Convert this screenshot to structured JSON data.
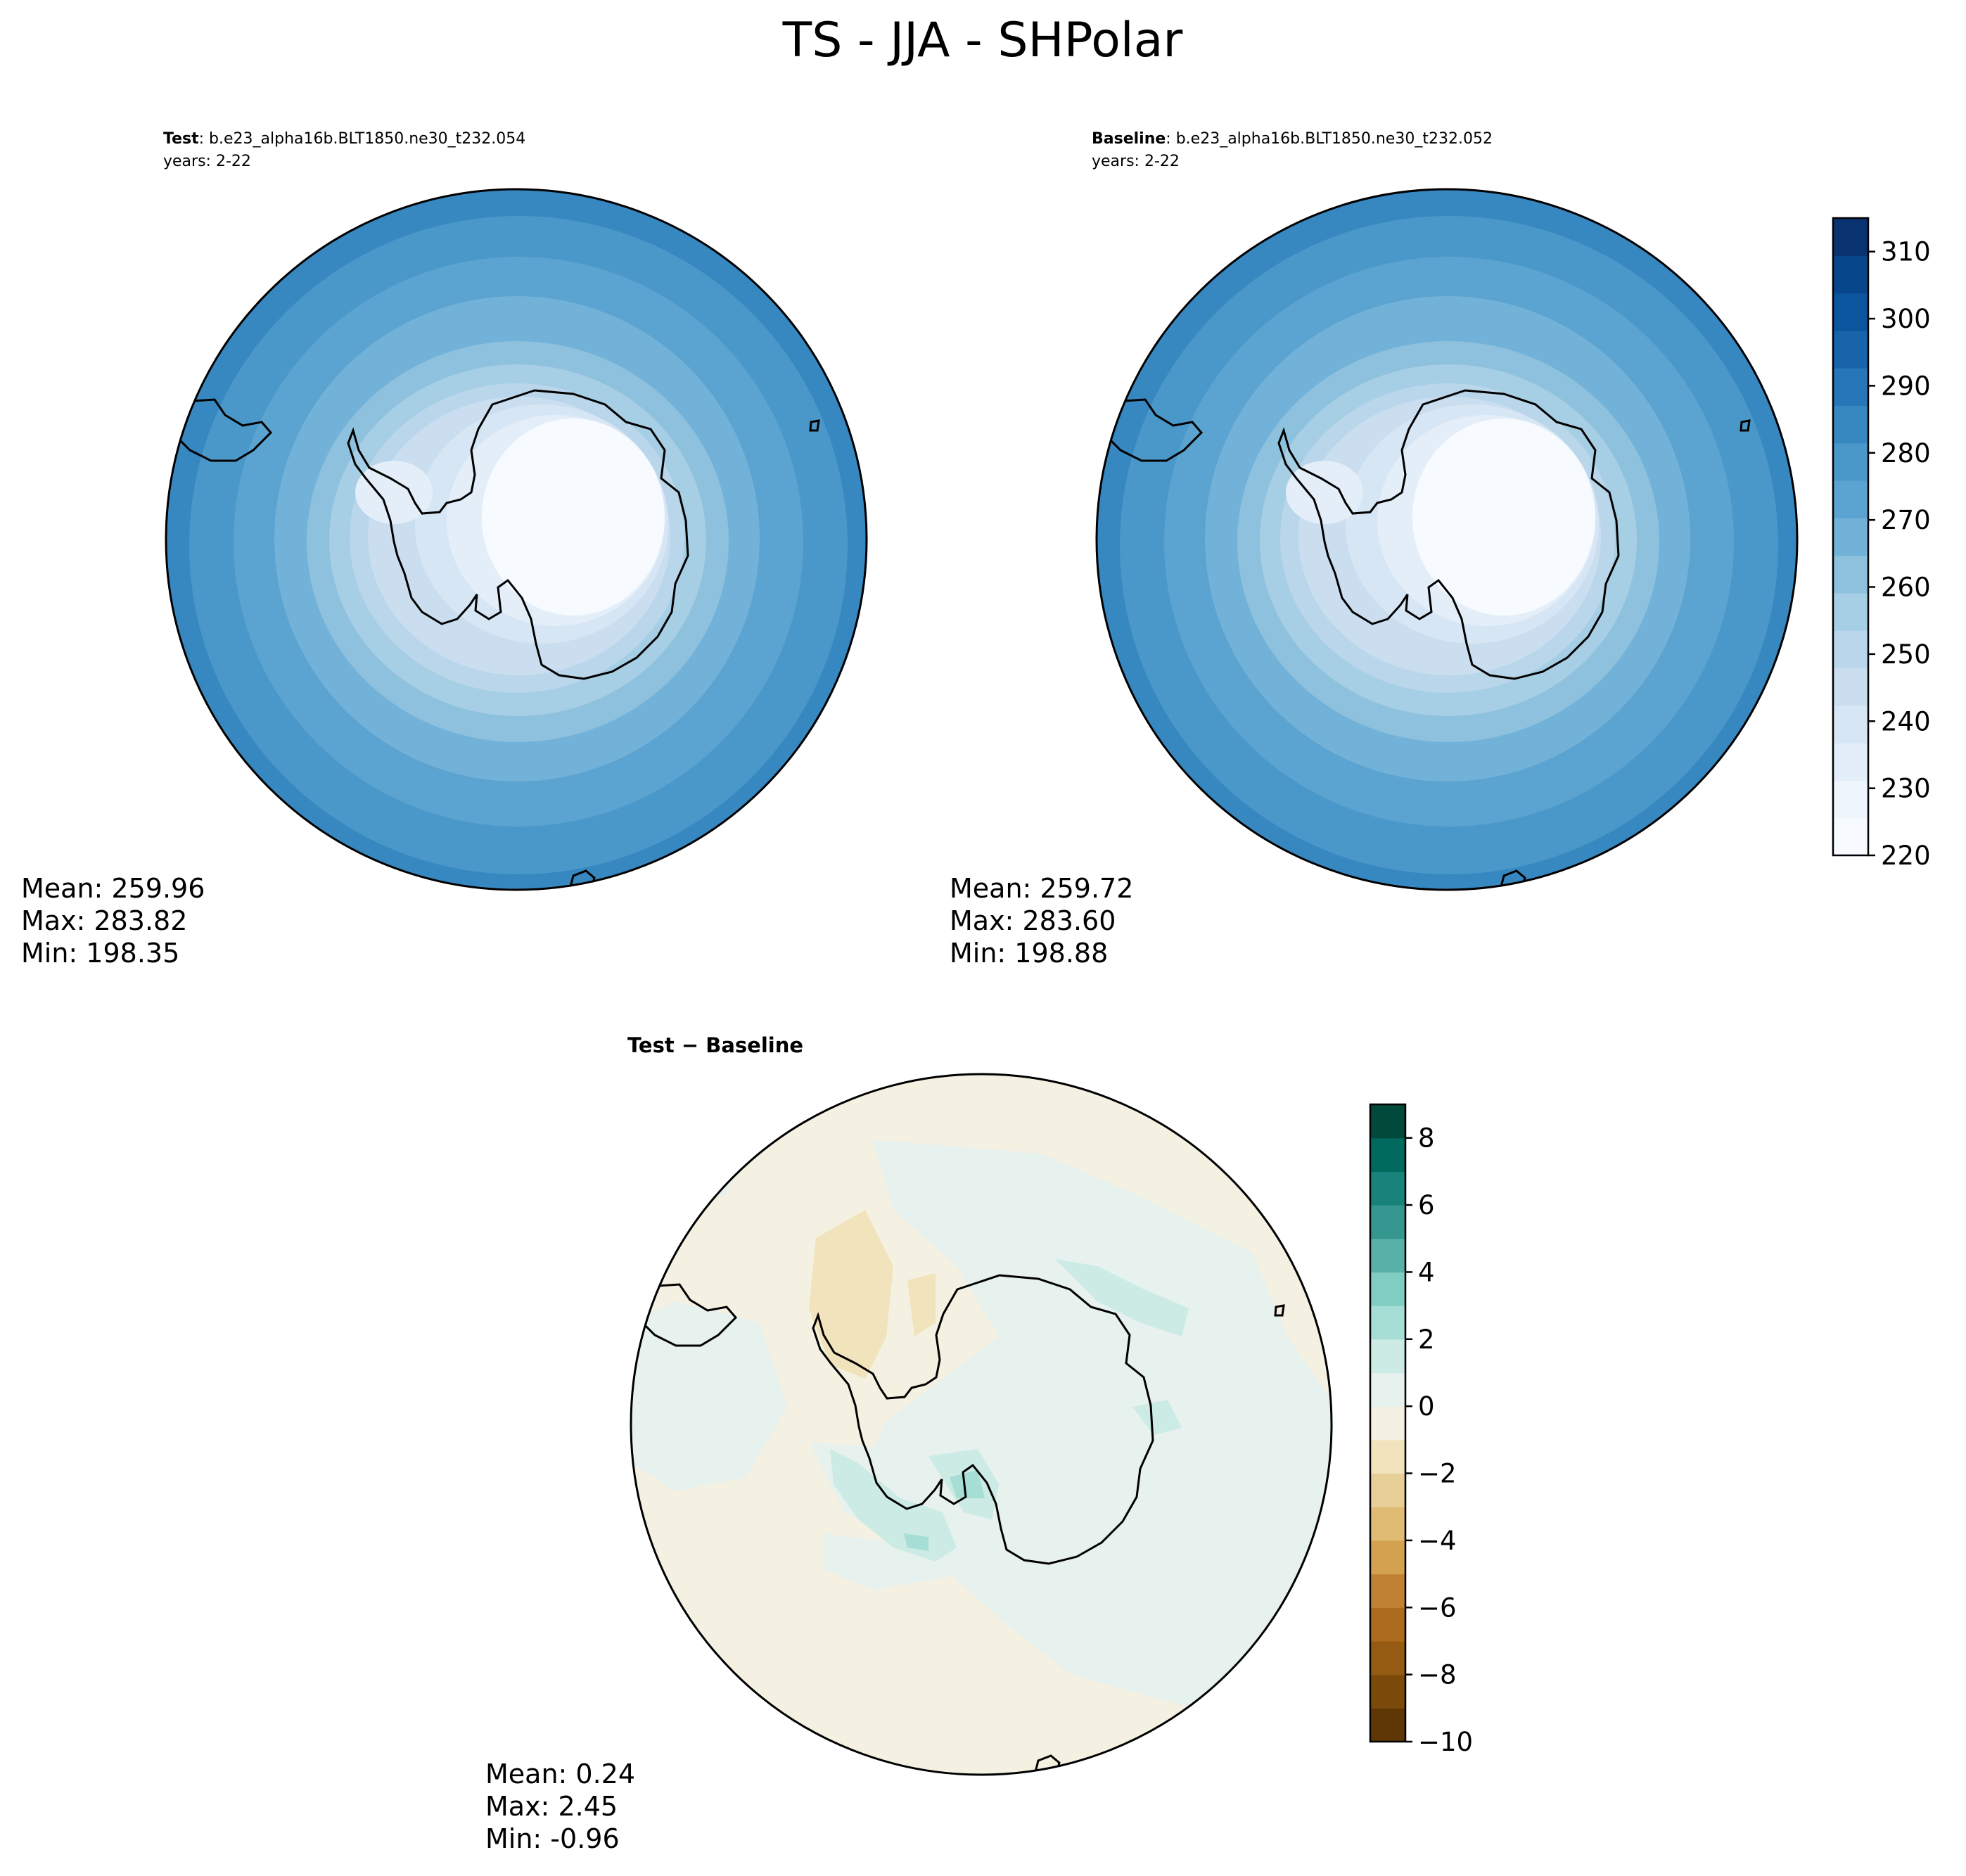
{
  "figure": {
    "title": "TS - JJA - SHPolar"
  },
  "panels": {
    "test": {
      "label_bold": "Test",
      "label_rest": ": b.e23_alpha16b.BLT1850.ne30_t232.054",
      "years": "years: 2-22",
      "mean": "Mean: 259.96",
      "max": "Max: 283.82",
      "min": "Min: 198.35"
    },
    "baseline": {
      "label_bold": "Baseline",
      "label_rest": ": b.e23_alpha16b.BLT1850.ne30_t232.052",
      "years": "years: 2-22",
      "mean": "Mean: 259.72",
      "max": "Max: 283.60",
      "min": "Min: 198.88"
    },
    "diff": {
      "label": "Test − Baseline",
      "mean": "Mean:  0.24",
      "max": "Max:  2.45",
      "min": "Min: -0.96"
    }
  },
  "colorbars": {
    "main": {
      "ticks": [
        "220",
        "230",
        "240",
        "250",
        "260",
        "270",
        "280",
        "290",
        "300",
        "310"
      ],
      "colors": [
        "#f7fbff",
        "#eef5fc",
        "#e3eef9",
        "#d7e6f5",
        "#cadef0",
        "#bad6eb",
        "#a6cee4",
        "#8dc1dd",
        "#73b2d8",
        "#5ba3d0",
        "#4a98c9",
        "#3787c0",
        "#2676b8",
        "#1764ab",
        "#0b559f",
        "#08468b",
        "#083370"
      ]
    },
    "diff": {
      "ticks": [
        "−10",
        "−8",
        "−6",
        "−4",
        "−2",
        "0",
        "2",
        "4",
        "6",
        "8"
      ],
      "colors": [
        "#5e3705",
        "#7b4a0b",
        "#955b12",
        "#ad6b1d",
        "#c08134",
        "#d3a150",
        "#dfbb74",
        "#e8cf98",
        "#f1e3bb",
        "#f5f1e2",
        "#e7f1ee",
        "#ccebe5",
        "#a6ded5",
        "#80cdc1",
        "#58b0a7",
        "#35978f",
        "#18837b",
        "#016a5e",
        "#01493b"
      ]
    }
  }
}
